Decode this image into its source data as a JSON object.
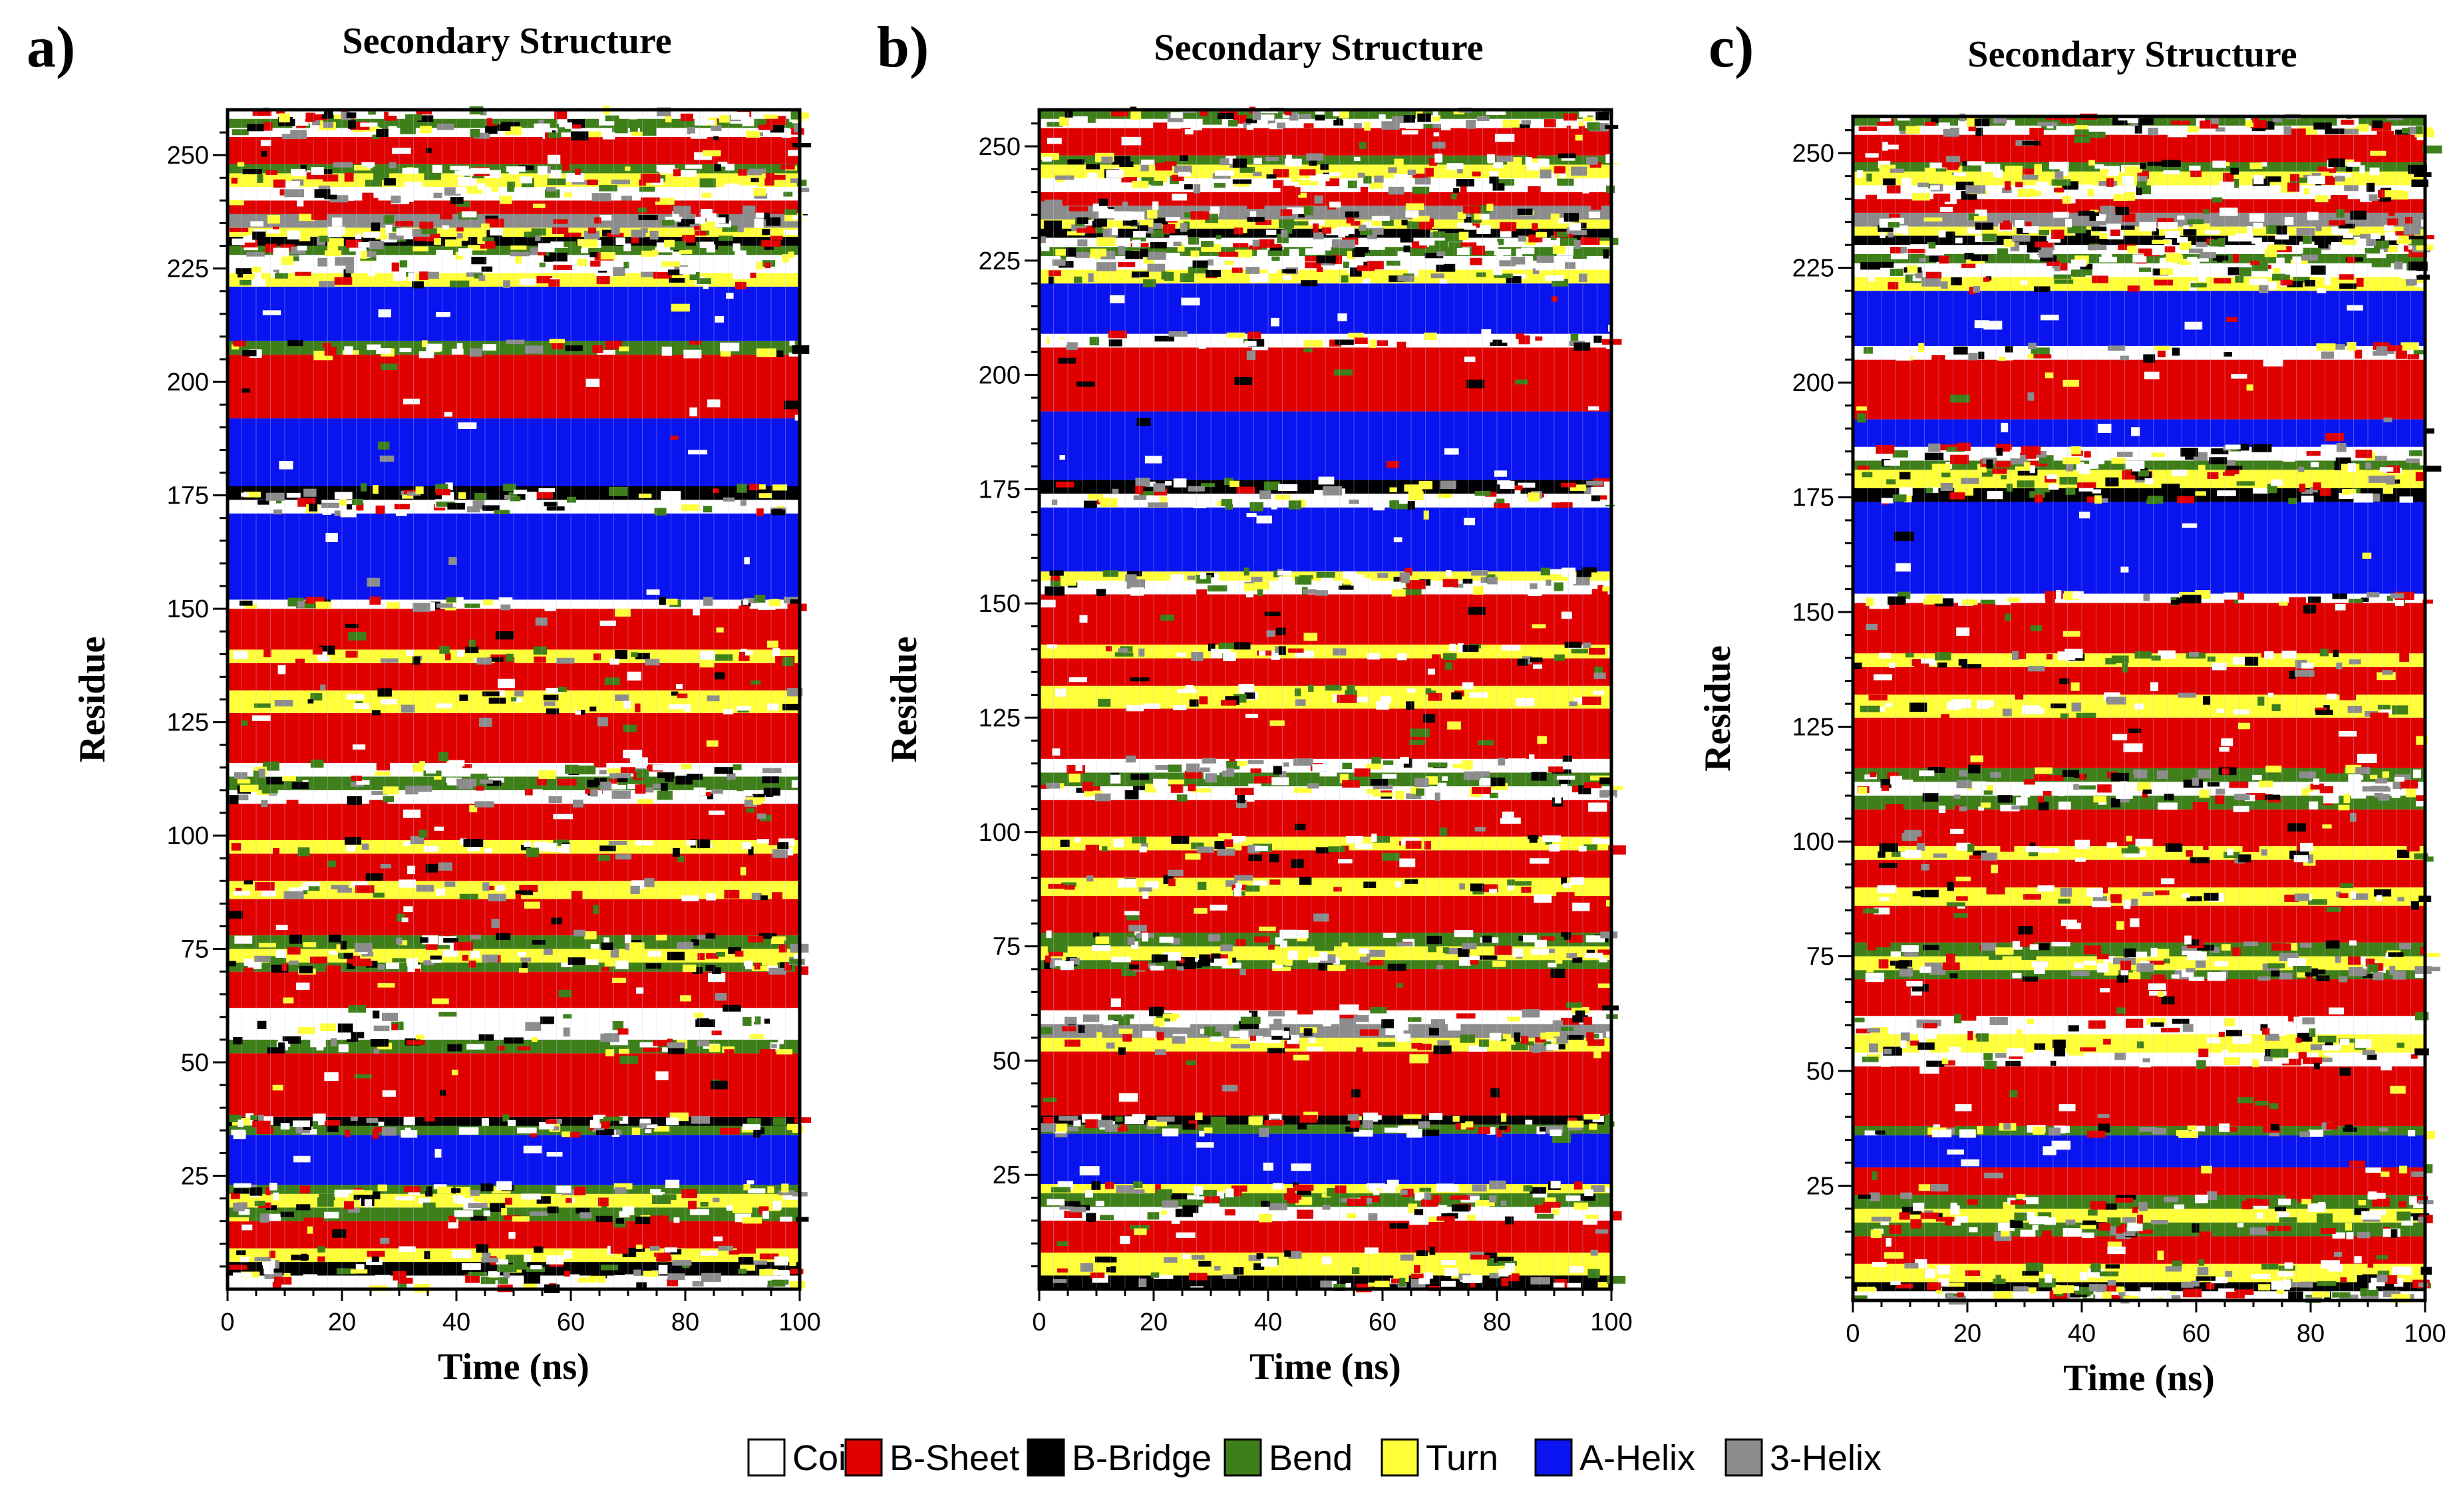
{
  "chart_data": [
    {
      "type": "heatmap",
      "panel_label": "a)",
      "title": "Secondary Structure",
      "xlabel": "Time (ns)",
      "ylabel": "Residue",
      "xlim": [
        0,
        100
      ],
      "ylim": [
        0,
        260
      ],
      "xticks": [
        0,
        20,
        40,
        60,
        80,
        100
      ],
      "yticks": [
        25,
        50,
        75,
        100,
        125,
        150,
        175,
        200,
        225,
        250
      ],
      "bands": [
        {
          "from": 0,
          "to": 3,
          "state": "Coil"
        },
        {
          "from": 3,
          "to": 6,
          "state": "B-Bridge"
        },
        {
          "from": 6,
          "to": 9,
          "state": "Turn"
        },
        {
          "from": 9,
          "to": 15,
          "state": "B-Sheet"
        },
        {
          "from": 15,
          "to": 18,
          "state": "Bend"
        },
        {
          "from": 18,
          "to": 21,
          "state": "Turn"
        },
        {
          "from": 21,
          "to": 23,
          "state": "Bend"
        },
        {
          "from": 23,
          "to": 34,
          "state": "A-Helix"
        },
        {
          "from": 34,
          "to": 36,
          "state": "Bend"
        },
        {
          "from": 36,
          "to": 38,
          "state": "B-Bridge"
        },
        {
          "from": 38,
          "to": 52,
          "state": "B-Sheet"
        },
        {
          "from": 52,
          "to": 55,
          "state": "Bend"
        },
        {
          "from": 55,
          "to": 62,
          "state": "Coil"
        },
        {
          "from": 62,
          "to": 70,
          "state": "B-Sheet"
        },
        {
          "from": 70,
          "to": 72,
          "state": "Bend"
        },
        {
          "from": 72,
          "to": 75,
          "state": "Turn"
        },
        {
          "from": 75,
          "to": 78,
          "state": "Bend"
        },
        {
          "from": 78,
          "to": 86,
          "state": "B-Sheet"
        },
        {
          "from": 86,
          "to": 90,
          "state": "Turn"
        },
        {
          "from": 90,
          "to": 96,
          "state": "B-Sheet"
        },
        {
          "from": 96,
          "to": 99,
          "state": "Turn"
        },
        {
          "from": 99,
          "to": 107,
          "state": "B-Sheet"
        },
        {
          "from": 107,
          "to": 110,
          "state": "Coil"
        },
        {
          "from": 110,
          "to": 113,
          "state": "Bend"
        },
        {
          "from": 113,
          "to": 116,
          "state": "Coil"
        },
        {
          "from": 116,
          "to": 127,
          "state": "B-Sheet"
        },
        {
          "from": 127,
          "to": 132,
          "state": "Turn"
        },
        {
          "from": 132,
          "to": 138,
          "state": "B-Sheet"
        },
        {
          "from": 138,
          "to": 141,
          "state": "Turn"
        },
        {
          "from": 141,
          "to": 150,
          "state": "B-Sheet"
        },
        {
          "from": 150,
          "to": 152,
          "state": "Coil"
        },
        {
          "from": 152,
          "to": 171,
          "state": "A-Helix"
        },
        {
          "from": 171,
          "to": 174,
          "state": "Coil"
        },
        {
          "from": 174,
          "to": 177,
          "state": "B-Bridge"
        },
        {
          "from": 177,
          "to": 192,
          "state": "A-Helix"
        },
        {
          "from": 192,
          "to": 206,
          "state": "B-Sheet"
        },
        {
          "from": 206,
          "to": 209,
          "state": "Bend"
        },
        {
          "from": 209,
          "to": 221,
          "state": "A-Helix"
        },
        {
          "from": 221,
          "to": 224,
          "state": "Turn"
        },
        {
          "from": 224,
          "to": 228,
          "state": "Coil"
        },
        {
          "from": 228,
          "to": 230,
          "state": "Bend"
        },
        {
          "from": 230,
          "to": 232,
          "state": "B-Bridge"
        },
        {
          "from": 232,
          "to": 234,
          "state": "Turn"
        },
        {
          "from": 234,
          "to": 237,
          "state": "3-Helix"
        },
        {
          "from": 237,
          "to": 240,
          "state": "B-Sheet"
        },
        {
          "from": 240,
          "to": 243,
          "state": "Coil"
        },
        {
          "from": 243,
          "to": 246,
          "state": "Turn"
        },
        {
          "from": 246,
          "to": 248,
          "state": "Bend"
        },
        {
          "from": 248,
          "to": 254,
          "state": "B-Sheet"
        },
        {
          "from": 254,
          "to": 256,
          "state": "Coil"
        },
        {
          "from": 256,
          "to": 258,
          "state": "Bend"
        },
        {
          "from": 258,
          "to": 260,
          "state": "Coil"
        }
      ]
    },
    {
      "type": "heatmap",
      "panel_label": "b)",
      "title": "Secondary Structure",
      "xlabel": "Time (ns)",
      "ylabel": "Residue",
      "xlim": [
        0,
        100
      ],
      "ylim": [
        0,
        258
      ],
      "xticks": [
        0,
        20,
        40,
        60,
        80,
        100
      ],
      "yticks": [
        25,
        50,
        75,
        100,
        125,
        150,
        175,
        200,
        225,
        250
      ],
      "bands": [
        {
          "from": 0,
          "to": 3,
          "state": "B-Bridge"
        },
        {
          "from": 3,
          "to": 8,
          "state": "Turn"
        },
        {
          "from": 8,
          "to": 15,
          "state": "B-Sheet"
        },
        {
          "from": 15,
          "to": 18,
          "state": "Coil"
        },
        {
          "from": 18,
          "to": 21,
          "state": "Bend"
        },
        {
          "from": 21,
          "to": 23,
          "state": "Turn"
        },
        {
          "from": 23,
          "to": 34,
          "state": "A-Helix"
        },
        {
          "from": 34,
          "to": 36,
          "state": "Bend"
        },
        {
          "from": 36,
          "to": 38,
          "state": "B-Bridge"
        },
        {
          "from": 38,
          "to": 52,
          "state": "B-Sheet"
        },
        {
          "from": 52,
          "to": 55,
          "state": "Turn"
        },
        {
          "from": 55,
          "to": 58,
          "state": "3-Helix"
        },
        {
          "from": 58,
          "to": 61,
          "state": "Coil"
        },
        {
          "from": 61,
          "to": 70,
          "state": "B-Sheet"
        },
        {
          "from": 70,
          "to": 72,
          "state": "Bend"
        },
        {
          "from": 72,
          "to": 75,
          "state": "Turn"
        },
        {
          "from": 75,
          "to": 78,
          "state": "Bend"
        },
        {
          "from": 78,
          "to": 86,
          "state": "B-Sheet"
        },
        {
          "from": 86,
          "to": 90,
          "state": "Turn"
        },
        {
          "from": 90,
          "to": 96,
          "state": "B-Sheet"
        },
        {
          "from": 96,
          "to": 99,
          "state": "Turn"
        },
        {
          "from": 99,
          "to": 107,
          "state": "B-Sheet"
        },
        {
          "from": 107,
          "to": 110,
          "state": "Coil"
        },
        {
          "from": 110,
          "to": 113,
          "state": "Bend"
        },
        {
          "from": 113,
          "to": 116,
          "state": "Coil"
        },
        {
          "from": 116,
          "to": 127,
          "state": "B-Sheet"
        },
        {
          "from": 127,
          "to": 132,
          "state": "Turn"
        },
        {
          "from": 132,
          "to": 138,
          "state": "B-Sheet"
        },
        {
          "from": 138,
          "to": 141,
          "state": "Turn"
        },
        {
          "from": 141,
          "to": 152,
          "state": "B-Sheet"
        },
        {
          "from": 152,
          "to": 155,
          "state": "Coil"
        },
        {
          "from": 155,
          "to": 157,
          "state": "Turn"
        },
        {
          "from": 157,
          "to": 171,
          "state": "A-Helix"
        },
        {
          "from": 171,
          "to": 174,
          "state": "Coil"
        },
        {
          "from": 174,
          "to": 177,
          "state": "B-Bridge"
        },
        {
          "from": 177,
          "to": 192,
          "state": "A-Helix"
        },
        {
          "from": 192,
          "to": 206,
          "state": "B-Sheet"
        },
        {
          "from": 206,
          "to": 209,
          "state": "Coil"
        },
        {
          "from": 209,
          "to": 220,
          "state": "A-Helix"
        },
        {
          "from": 220,
          "to": 223,
          "state": "Turn"
        },
        {
          "from": 223,
          "to": 226,
          "state": "Coil"
        },
        {
          "from": 226,
          "to": 228,
          "state": "Bend"
        },
        {
          "from": 228,
          "to": 230,
          "state": "Coil"
        },
        {
          "from": 230,
          "to": 232,
          "state": "B-Bridge"
        },
        {
          "from": 232,
          "to": 234,
          "state": "Turn"
        },
        {
          "from": 234,
          "to": 237,
          "state": "3-Helix"
        },
        {
          "from": 237,
          "to": 240,
          "state": "B-Sheet"
        },
        {
          "from": 240,
          "to": 243,
          "state": "Coil"
        },
        {
          "from": 243,
          "to": 246,
          "state": "Turn"
        },
        {
          "from": 246,
          "to": 248,
          "state": "Bend"
        },
        {
          "from": 248,
          "to": 254,
          "state": "B-Sheet"
        },
        {
          "from": 254,
          "to": 256,
          "state": "Coil"
        },
        {
          "from": 256,
          "to": 258,
          "state": "Bend"
        }
      ]
    },
    {
      "type": "heatmap",
      "panel_label": "c)",
      "title": "Secondary Structure",
      "xlabel": "Time (ns)",
      "ylabel": "Residue",
      "xlim": [
        0,
        100
      ],
      "ylim": [
        0,
        258
      ],
      "xticks": [
        0,
        20,
        40,
        60,
        80,
        100
      ],
      "yticks": [
        25,
        50,
        75,
        100,
        125,
        150,
        175,
        200,
        225,
        250
      ],
      "bands": [
        {
          "from": 0,
          "to": 2,
          "state": "Coil"
        },
        {
          "from": 2,
          "to": 4,
          "state": "B-Bridge"
        },
        {
          "from": 4,
          "to": 8,
          "state": "Turn"
        },
        {
          "from": 8,
          "to": 14,
          "state": "B-Sheet"
        },
        {
          "from": 14,
          "to": 17,
          "state": "Bend"
        },
        {
          "from": 17,
          "to": 20,
          "state": "Turn"
        },
        {
          "from": 20,
          "to": 23,
          "state": "Bend"
        },
        {
          "from": 23,
          "to": 29,
          "state": "B-Sheet"
        },
        {
          "from": 29,
          "to": 36,
          "state": "A-Helix"
        },
        {
          "from": 36,
          "to": 38,
          "state": "Bend"
        },
        {
          "from": 38,
          "to": 51,
          "state": "B-Sheet"
        },
        {
          "from": 51,
          "to": 54,
          "state": "Coil"
        },
        {
          "from": 54,
          "to": 58,
          "state": "Turn"
        },
        {
          "from": 58,
          "to": 62,
          "state": "Coil"
        },
        {
          "from": 62,
          "to": 70,
          "state": "B-Sheet"
        },
        {
          "from": 70,
          "to": 72,
          "state": "Bend"
        },
        {
          "from": 72,
          "to": 75,
          "state": "Turn"
        },
        {
          "from": 75,
          "to": 78,
          "state": "Bend"
        },
        {
          "from": 78,
          "to": 86,
          "state": "B-Sheet"
        },
        {
          "from": 86,
          "to": 90,
          "state": "Turn"
        },
        {
          "from": 90,
          "to": 96,
          "state": "B-Sheet"
        },
        {
          "from": 96,
          "to": 99,
          "state": "Turn"
        },
        {
          "from": 99,
          "to": 107,
          "state": "B-Sheet"
        },
        {
          "from": 107,
          "to": 110,
          "state": "Bend"
        },
        {
          "from": 110,
          "to": 113,
          "state": "Coil"
        },
        {
          "from": 113,
          "to": 116,
          "state": "Bend"
        },
        {
          "from": 116,
          "to": 127,
          "state": "B-Sheet"
        },
        {
          "from": 127,
          "to": 132,
          "state": "Turn"
        },
        {
          "from": 132,
          "to": 138,
          "state": "B-Sheet"
        },
        {
          "from": 138,
          "to": 141,
          "state": "Turn"
        },
        {
          "from": 141,
          "to": 152,
          "state": "B-Sheet"
        },
        {
          "from": 152,
          "to": 154,
          "state": "Coil"
        },
        {
          "from": 154,
          "to": 174,
          "state": "A-Helix"
        },
        {
          "from": 174,
          "to": 177,
          "state": "B-Bridge"
        },
        {
          "from": 177,
          "to": 181,
          "state": "Turn"
        },
        {
          "from": 181,
          "to": 183,
          "state": "Bend"
        },
        {
          "from": 183,
          "to": 186,
          "state": "Coil"
        },
        {
          "from": 186,
          "to": 192,
          "state": "A-Helix"
        },
        {
          "from": 192,
          "to": 205,
          "state": "B-Sheet"
        },
        {
          "from": 205,
          "to": 208,
          "state": "Coil"
        },
        {
          "from": 208,
          "to": 220,
          "state": "A-Helix"
        },
        {
          "from": 220,
          "to": 223,
          "state": "Turn"
        },
        {
          "from": 223,
          "to": 226,
          "state": "Coil"
        },
        {
          "from": 226,
          "to": 228,
          "state": "Bend"
        },
        {
          "from": 228,
          "to": 230,
          "state": "Coil"
        },
        {
          "from": 230,
          "to": 232,
          "state": "B-Bridge"
        },
        {
          "from": 232,
          "to": 234,
          "state": "Turn"
        },
        {
          "from": 234,
          "to": 237,
          "state": "3-Helix"
        },
        {
          "from": 237,
          "to": 240,
          "state": "B-Sheet"
        },
        {
          "from": 240,
          "to": 243,
          "state": "Coil"
        },
        {
          "from": 243,
          "to": 246,
          "state": "Turn"
        },
        {
          "from": 246,
          "to": 248,
          "state": "Bend"
        },
        {
          "from": 248,
          "to": 254,
          "state": "B-Sheet"
        },
        {
          "from": 254,
          "to": 256,
          "state": "Coil"
        },
        {
          "from": 256,
          "to": 258,
          "state": "Bend"
        }
      ]
    }
  ],
  "legend": [
    {
      "label": "Coil",
      "color": "#ffffff"
    },
    {
      "label": "B-Sheet",
      "color": "#e00000"
    },
    {
      "label": "B-Bridge",
      "color": "#000000"
    },
    {
      "label": "Bend",
      "color": "#3f7f1a"
    },
    {
      "label": "Turn",
      "color": "#ffff3a"
    },
    {
      "label": "A-Helix",
      "color": "#0a14f0"
    },
    {
      "label": "3-Helix",
      "color": "#8c8c8c"
    }
  ]
}
